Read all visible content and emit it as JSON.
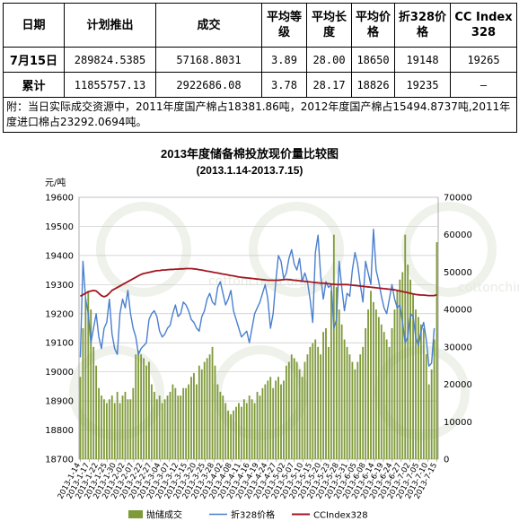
{
  "table": {
    "headers": [
      "日期",
      "计划推出",
      "成交",
      "平均等级",
      "平均长度",
      "平均价格",
      "折328价格",
      "CC Index 328"
    ],
    "rows": [
      {
        "label": "7月15日",
        "values": [
          "289824.5385",
          "57168.8031",
          "3.89",
          "28.00",
          "18650",
          "19148",
          "19265"
        ]
      },
      {
        "label": "累计",
        "values": [
          "11855757.13",
          "2922686.08",
          "3.78",
          "28.17",
          "18826",
          "19235",
          "–"
        ]
      }
    ],
    "note": "附：当日实际成交资源中，2011年度国产棉占18381.86吨，2012年度国产棉占15494.8737吨,2011年度进口棉占23292.0694吨。"
  },
  "watermark": "cottonchina.org",
  "chart_data": {
    "type": "bar",
    "title": "2013年度储备棉投放现价量比较图",
    "subtitle": "(2013.1.14-2013.7.15)",
    "ylabel": "元/吨",
    "ylim": [
      18700,
      19600
    ],
    "yticks": [
      18700,
      18800,
      18900,
      19000,
      19100,
      19200,
      19300,
      19400,
      19500,
      19600
    ],
    "y2lim": [
      0,
      70000
    ],
    "y2ticks": [
      0,
      10000,
      20000,
      30000,
      40000,
      50000,
      60000,
      70000
    ],
    "x_labels": [
      "2013-1-14",
      "2013-1-17",
      "2013-1-22",
      "2013-1-25",
      "2013-1-30",
      "2013-2-02",
      "2013-2-07",
      "2013-2-22",
      "2013-2-27",
      "2013-3-04",
      "2013-3-07",
      "2013-3-12",
      "2013-3-15",
      "2013-3-20",
      "2013-3-25",
      "2013-3-28",
      "2013-4-02",
      "2013-4-08",
      "2013-4-11",
      "2013-4-16",
      "2013-4-19",
      "2013-4-24",
      "2013-4-27",
      "2013-5-02",
      "2013-5-07",
      "2013-5-10",
      "2013-5-15",
      "2013-5-20",
      "2013-5-23",
      "2013-5-28",
      "2013-5-31",
      "2013-6-05",
      "2013-6-08",
      "2013-6-14",
      "2013-6-19",
      "2013-6-24",
      "2013-6-27",
      "2013-7-02",
      "2013-7-05",
      "2013-7-10",
      "2013-7-15"
    ],
    "series": [
      {
        "name": "抛储成交",
        "type": "bar",
        "axis": "right",
        "color": "#7f9a3a",
        "values": [
          22000,
          35000,
          43000,
          45000,
          40000,
          30000,
          25000,
          19000,
          17000,
          16000,
          15000,
          16000,
          17000,
          15000,
          18000,
          15000,
          17000,
          18000,
          16000,
          16000,
          19000,
          28000,
          29000,
          28000,
          27000,
          25000,
          26000,
          20000,
          18000,
          16000,
          17000,
          15000,
          16000,
          17000,
          18000,
          20000,
          19000,
          17000,
          17000,
          19000,
          19000,
          20000,
          22000,
          23000,
          20000,
          25000,
          24000,
          26000,
          27000,
          28000,
          30000,
          25000,
          20000,
          18000,
          17000,
          15000,
          13000,
          12000,
          13000,
          14000,
          15000,
          14000,
          16000,
          15000,
          17000,
          16000,
          15000,
          18000,
          17000,
          19000,
          20000,
          21000,
          22000,
          19000,
          21000,
          22000,
          20000,
          21000,
          25000,
          26000,
          28000,
          27000,
          26000,
          24000,
          22000,
          26000,
          28000,
          30000,
          31000,
          32000,
          30000,
          28000,
          34000,
          35000,
          30000,
          45000,
          60000,
          46000,
          40000,
          36000,
          32000,
          30000,
          28000,
          26000,
          24000,
          26000,
          28000,
          30000,
          35000,
          40000,
          45000,
          42000,
          40000,
          38000,
          36000,
          34000,
          32000,
          30000,
          35000,
          40000,
          45000,
          48000,
          50000,
          60000,
          52000,
          48000,
          44000,
          40000,
          38000,
          36000,
          35000,
          28000,
          20000,
          24000,
          32000,
          58000
        ]
      },
      {
        "name": "折328价格",
        "type": "line",
        "axis": "left",
        "color": "#4a7fcf",
        "values": [
          19050,
          19380,
          19250,
          19200,
          19100,
          19150,
          19200,
          19120,
          19080,
          19150,
          19170,
          19250,
          19130,
          19080,
          19060,
          19200,
          19250,
          19220,
          19280,
          19200,
          19150,
          19120,
          19060,
          19080,
          19090,
          19100,
          19180,
          19200,
          19210,
          19190,
          19140,
          19120,
          19130,
          19150,
          19160,
          19200,
          19230,
          19190,
          19200,
          19240,
          19230,
          19210,
          19180,
          19170,
          19150,
          19140,
          19190,
          19210,
          19250,
          19270,
          19240,
          19230,
          19290,
          19310,
          19270,
          19230,
          19250,
          19280,
          19210,
          19180,
          19150,
          19120,
          19130,
          19140,
          19100,
          19150,
          19200,
          19220,
          19240,
          19270,
          19300,
          19250,
          19150,
          19200,
          19310,
          19400,
          19380,
          19320,
          19340,
          19390,
          19420,
          19370,
          19350,
          19390,
          19310,
          19340,
          19310,
          19250,
          19170,
          19410,
          19470,
          19330,
          19250,
          19310,
          19290,
          19300,
          19150,
          19180,
          19380,
          19290,
          19210,
          19270,
          19260,
          19350,
          19410,
          19370,
          19300,
          19240,
          19380,
          19340,
          19300,
          19490,
          19350,
          19310,
          19260,
          19220,
          19200,
          19250,
          19300,
          19250,
          19220,
          19230,
          19170,
          19100,
          19120,
          19200,
          19190,
          19120,
          19090,
          19140,
          19170,
          19110,
          19020,
          19030,
          19150
        ]
      },
      {
        "name": "CCIndex328",
        "type": "line",
        "axis": "left",
        "color": "#a31621",
        "values": [
          19260,
          19265,
          19270,
          19275,
          19278,
          19280,
          19278,
          19270,
          19262,
          19258,
          19262,
          19270,
          19280,
          19285,
          19290,
          19295,
          19300,
          19305,
          19310,
          19315,
          19320,
          19325,
          19330,
          19335,
          19338,
          19340,
          19342,
          19344,
          19346,
          19348,
          19348,
          19350,
          19350,
          19351,
          19352,
          19352,
          19353,
          19353,
          19354,
          19354,
          19355,
          19355,
          19355,
          19354,
          19353,
          19351,
          19350,
          19348,
          19346,
          19345,
          19343,
          19341,
          19340,
          19338,
          19336,
          19335,
          19333,
          19331,
          19330,
          19328,
          19326,
          19325,
          19324,
          19323,
          19322,
          19321,
          19320,
          19319,
          19318,
          19317,
          19316,
          19315,
          19315,
          19315,
          19315,
          19315,
          19316,
          19317,
          19318,
          19317,
          19316,
          19315,
          19314,
          19313,
          19312,
          19311,
          19310,
          19309,
          19308,
          19307,
          19306,
          19305,
          19305,
          19304,
          19303,
          19302,
          19301,
          19300,
          19300,
          19300,
          19300,
          19300,
          19299,
          19298,
          19297,
          19296,
          19295,
          19294,
          19293,
          19292,
          19291,
          19290,
          19289,
          19288,
          19287,
          19286,
          19285,
          19284,
          19283,
          19282,
          19280,
          19278,
          19276,
          19274,
          19272,
          19270,
          19268,
          19266,
          19265,
          19264,
          19264,
          19263,
          19262,
          19262,
          19262,
          19265
        ]
      }
    ],
    "legend": {
      "position": "bottom",
      "entries": [
        "抛储成交",
        "折328价格",
        "CCIndex328"
      ]
    },
    "grid": true
  }
}
